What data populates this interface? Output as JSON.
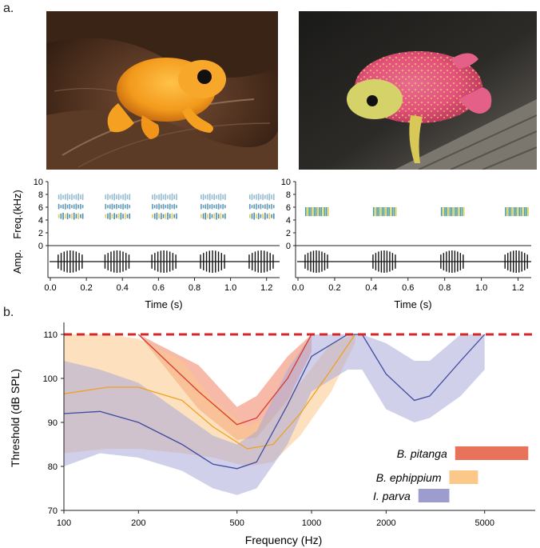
{
  "panel_a_label": "a.",
  "panel_b_label": "b.",
  "photos": [
    {
      "name": "orange-frog-photo",
      "subject_colors": {
        "frog": "#f39a1c",
        "leaf": "#5a3a25"
      }
    },
    {
      "name": "pink-frog-photo",
      "subject_colors": {
        "frog": "#e54f7e",
        "speckle": "#d8d04a",
        "bark": "#6a6660"
      }
    }
  ],
  "spectrograms": {
    "freq_label": "Freq.(kHz)",
    "amp_label": "Amp.",
    "freq_ticks": [
      "10",
      "8",
      "6",
      "4",
      "2",
      "0"
    ],
    "time_ticks": [
      "0.0",
      "0.2",
      "0.4",
      "0.6",
      "0.8",
      "1.0",
      "1.2"
    ],
    "time_label_left": "Time (s)",
    "time_label_right": "Time (s)",
    "left_call_times": [
      0.11,
      0.37,
      0.63,
      0.9,
      1.17
    ],
    "right_call_times": [
      0.1,
      0.47,
      0.84,
      1.19
    ]
  },
  "chart_data": {
    "type": "line",
    "xlabel": "Frequency (Hz)",
    "ylabel": "Threshold (dB SPL)",
    "x_scale": "log",
    "xlim": [
      100,
      8000
    ],
    "ylim": [
      70,
      112
    ],
    "x_ticks": [
      100,
      200,
      500,
      1000,
      2000,
      5000
    ],
    "x_tick_labels": [
      "100",
      "200",
      "500",
      "1000",
      "2000",
      "5000"
    ],
    "y_ticks": [
      70,
      80,
      90,
      100,
      110
    ],
    "y_tick_labels": [
      "70",
      "80",
      "90",
      "100",
      "110"
    ],
    "reference_line": {
      "y": 110,
      "color": "#d62728",
      "style": "dashed"
    },
    "series": [
      {
        "name": "B. pitanga",
        "color": "#d93a2b",
        "band_color": "#f08060",
        "x": [
          200,
          350,
          500,
          600,
          800,
          1000
        ],
        "y": [
          110,
          97,
          89.5,
          91,
          100,
          110
        ],
        "lower": [
          110,
          93,
          86,
          86.5,
          95,
          106
        ],
        "upper": [
          110,
          103,
          93.5,
          96,
          105,
          110
        ]
      },
      {
        "name": "B. ephippium",
        "color": "#f0a020",
        "band_color": "#fbc98a",
        "x": [
          100,
          150,
          200,
          300,
          400,
          550,
          700,
          900,
          1200,
          1500
        ],
        "y": [
          96.5,
          98,
          98,
          95,
          89,
          84,
          85,
          92,
          102,
          110
        ],
        "lower": [
          83,
          84,
          84,
          83,
          82,
          80,
          81,
          87,
          97,
          108
        ],
        "upper": [
          110,
          110,
          109,
          104,
          95,
          89,
          92,
          99,
          108,
          110
        ]
      },
      {
        "name": "I. parva",
        "color": "#3f4aa0",
        "band_color": "#aaaad8",
        "x": [
          100,
          140,
          200,
          300,
          400,
          500,
          600,
          800,
          1000,
          1400,
          1600,
          2000,
          2600,
          3000,
          4000,
          5000
        ],
        "y": [
          92,
          92.5,
          90,
          85,
          80.5,
          79.5,
          81,
          94,
          105,
          110,
          110,
          101,
          95,
          96,
          104,
          110
        ],
        "lower": [
          80,
          83,
          82,
          79,
          75,
          73.5,
          75,
          85,
          97,
          102,
          102,
          93,
          90,
          91,
          96,
          102
        ],
        "upper": [
          104,
          102,
          99,
          92,
          87,
          85,
          88,
          102,
          110,
          110,
          110,
          108,
          104,
          104,
          110,
          110
        ]
      }
    ],
    "legend": {
      "placement": "bottom-right",
      "items": [
        {
          "label": "B. pitanga",
          "color": "#e8735a",
          "range": [
            3800,
            7500
          ]
        },
        {
          "label": "B. ephippium",
          "color": "#fcc88a",
          "range": [
            3600,
            4700
          ]
        },
        {
          "label": "I. parva",
          "color": "#9c9ccf",
          "range": [
            2700,
            3600
          ]
        }
      ]
    }
  }
}
